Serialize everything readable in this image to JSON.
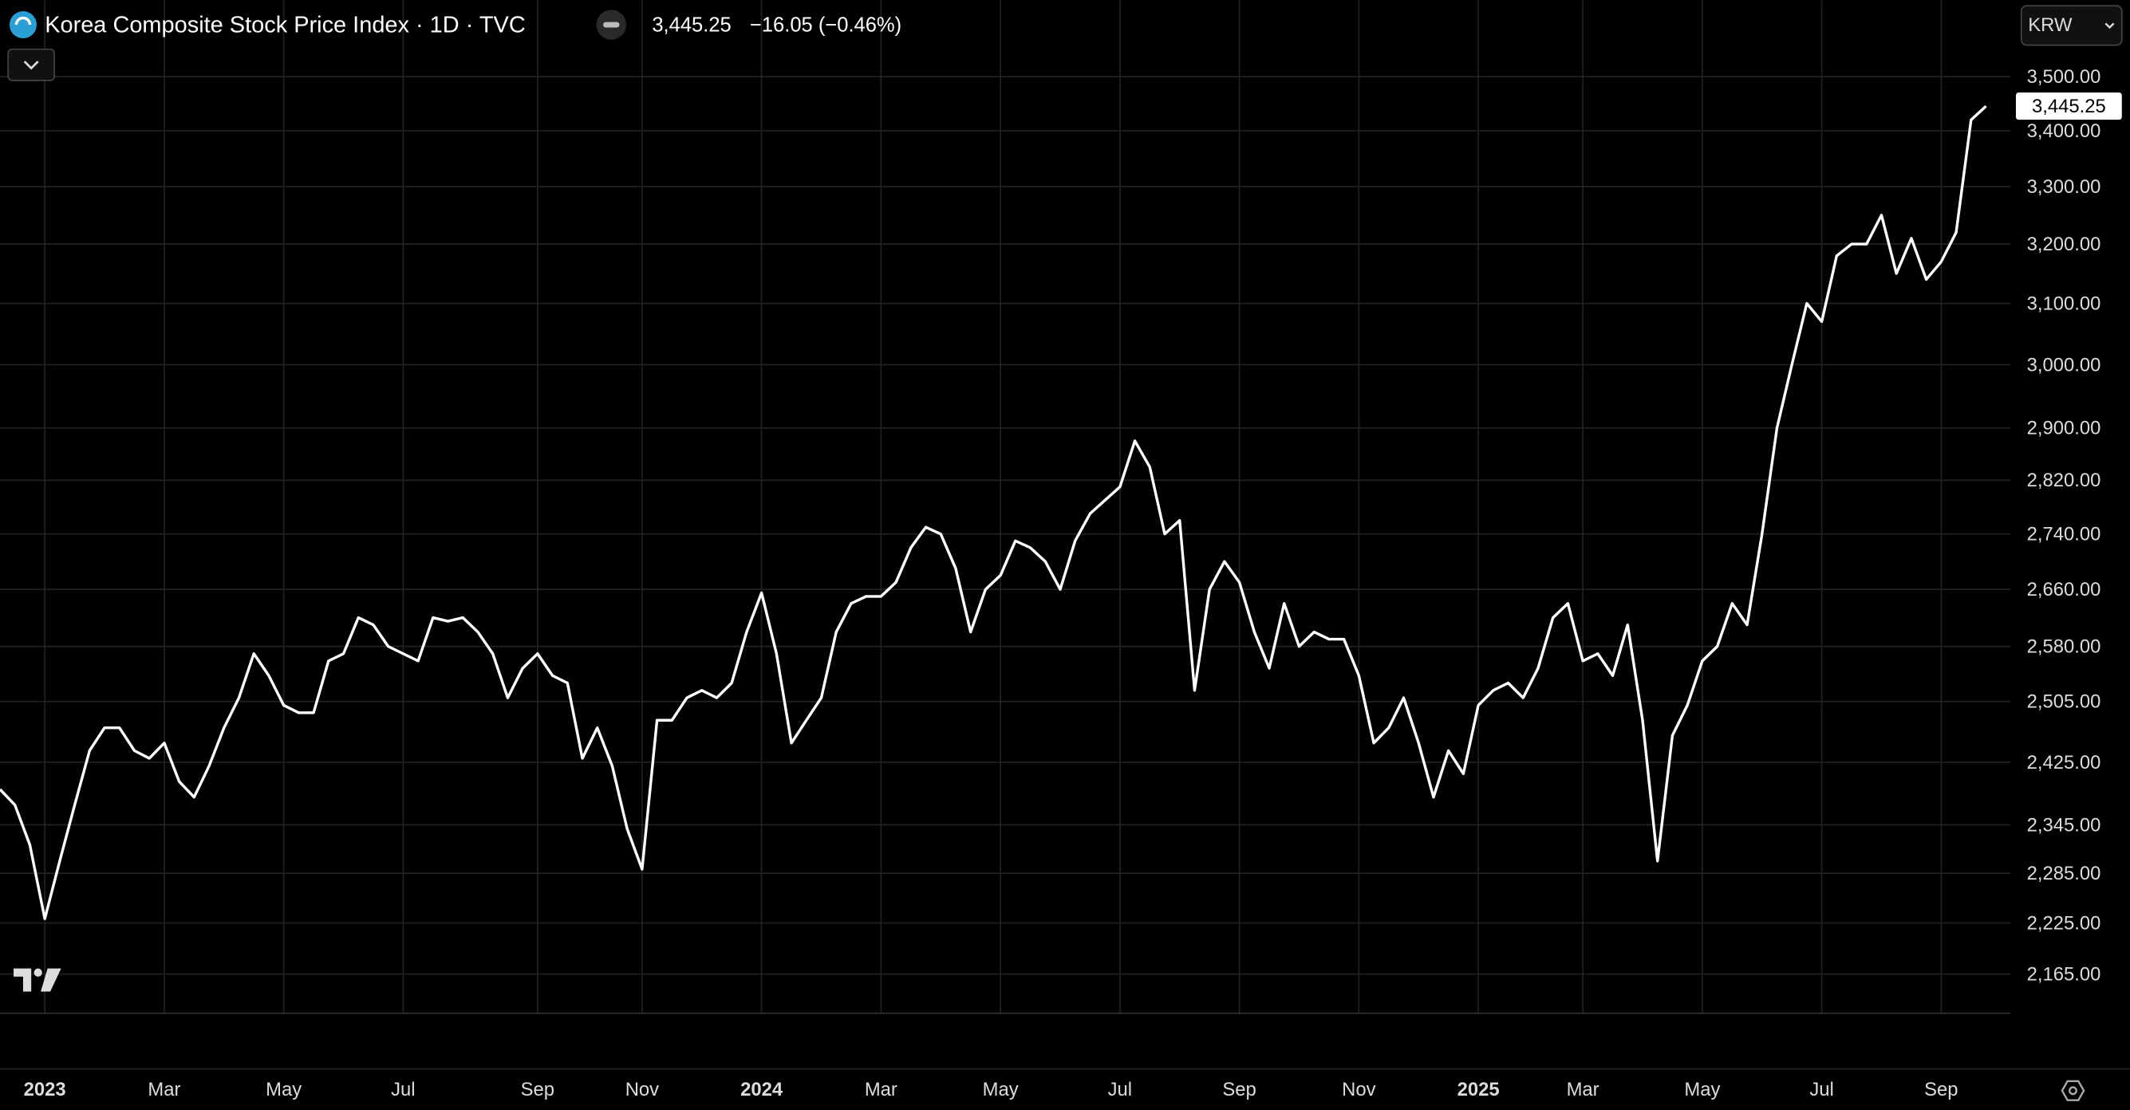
{
  "chart_data": {
    "type": "line",
    "title": "Korea Composite Stock Price Index · 1D · TVC",
    "price_label": "3,445.25",
    "change_label": "−16.05 (−0.46%)",
    "currency": "KRW",
    "color": "#ffffff",
    "yscale": "log",
    "grid": true,
    "ylim": [
      2120,
      3646
    ],
    "yticks": [
      {
        "value": 2165,
        "label": "2,165.00"
      },
      {
        "value": 2225,
        "label": "2,225.00"
      },
      {
        "value": 2285,
        "label": "2,285.00"
      },
      {
        "value": 2345,
        "label": "2,345.00"
      },
      {
        "value": 2425,
        "label": "2,425.00"
      },
      {
        "value": 2505,
        "label": "2,505.00"
      },
      {
        "value": 2580,
        "label": "2,580.00"
      },
      {
        "value": 2660,
        "label": "2,660.00"
      },
      {
        "value": 2740,
        "label": "2,740.00"
      },
      {
        "value": 2820,
        "label": "2,820.00"
      },
      {
        "value": 2900,
        "label": "2,900.00"
      },
      {
        "value": 3000,
        "label": "3,000.00"
      },
      {
        "value": 3100,
        "label": "3,100.00"
      },
      {
        "value": 3200,
        "label": "3,200.00"
      },
      {
        "value": 3300,
        "label": "3,300.00"
      },
      {
        "value": 3400,
        "label": "3,400.00"
      },
      {
        "value": 3500,
        "label": "3,500.00"
      }
    ],
    "categories": [
      null,
      null,
      null,
      "2023",
      null,
      null,
      null,
      null,
      null,
      null,
      null,
      "Mar",
      null,
      null,
      null,
      null,
      null,
      null,
      null,
      "May",
      null,
      null,
      null,
      null,
      null,
      null,
      null,
      "Jul",
      null,
      null,
      null,
      null,
      null,
      null,
      null,
      null,
      "Sep",
      null,
      null,
      null,
      null,
      null,
      null,
      "Nov",
      null,
      null,
      null,
      null,
      null,
      null,
      null,
      "2024",
      null,
      null,
      null,
      null,
      null,
      null,
      null,
      "Mar",
      null,
      null,
      null,
      null,
      null,
      null,
      null,
      "May",
      null,
      null,
      null,
      null,
      null,
      null,
      null,
      "Jul",
      null,
      null,
      null,
      null,
      null,
      null,
      null,
      "Sep",
      null,
      null,
      null,
      null,
      null,
      null,
      null,
      "Nov",
      null,
      null,
      null,
      null,
      null,
      null,
      null,
      "2025",
      null,
      null,
      null,
      null,
      null,
      null,
      "Mar",
      null,
      null,
      null,
      null,
      null,
      null,
      null,
      "May",
      null,
      null,
      null,
      null,
      null,
      null,
      null,
      "Jul",
      null,
      null,
      null,
      null,
      null,
      null,
      null,
      "Sep",
      null,
      null,
      null
    ],
    "series": [
      {
        "name": "Korea Composite Stock Price Index",
        "color": "#ffffff",
        "values": [
          2390,
          2370,
          2320,
          2230,
          2300,
          2370,
          2440,
          2470,
          2470,
          2440,
          2430,
          2450,
          2400,
          2380,
          2420,
          2470,
          2510,
          2570,
          2540,
          2500,
          2490,
          2490,
          2560,
          2570,
          2620,
          2610,
          2580,
          2570,
          2560,
          2620,
          2615,
          2620,
          2600,
          2570,
          2510,
          2550,
          2570,
          2540,
          2530,
          2430,
          2470,
          2420,
          2340,
          2290,
          2480,
          2480,
          2510,
          2520,
          2510,
          2530,
          2600,
          2655,
          2570,
          2450,
          2480,
          2510,
          2600,
          2640,
          2650,
          2650,
          2670,
          2720,
          2750,
          2740,
          2690,
          2600,
          2660,
          2680,
          2730,
          2720,
          2700,
          2660,
          2730,
          2770,
          2790,
          2810,
          2880,
          2840,
          2740,
          2760,
          2520,
          2660,
          2700,
          2670,
          2600,
          2550,
          2640,
          2580,
          2600,
          2590,
          2590,
          2540,
          2450,
          2470,
          2510,
          2450,
          2380,
          2440,
          2410,
          2500,
          2520,
          2530,
          2510,
          2550,
          2620,
          2640,
          2560,
          2570,
          2540,
          2610,
          2480,
          2300,
          2460,
          2500,
          2560,
          2580,
          2640,
          2610,
          2740,
          2900,
          3000,
          3100,
          3070,
          3180,
          3200,
          3200,
          3250,
          3150,
          3210,
          3140,
          3170,
          3220,
          3420,
          3445.25
        ]
      }
    ]
  }
}
